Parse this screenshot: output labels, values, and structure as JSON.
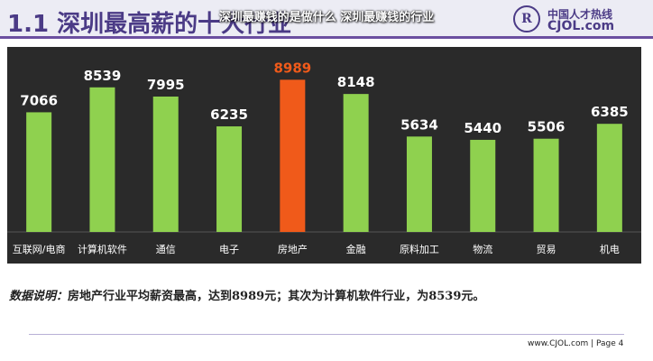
{
  "header": {
    "title": "1.1  深圳最高薪的十大行业",
    "overlay_caption": "深圳最赚钱的是做什么 深圳最赚钱的行业"
  },
  "logo": {
    "name_cn": "中国人才热线",
    "url": "CJOL.com",
    "seal_text": "CJOL"
  },
  "chart_data": {
    "type": "bar",
    "categories": [
      "互联网/电商",
      "计算机软件",
      "通信",
      "电子",
      "房地产",
      "金融",
      "原料加工",
      "物流",
      "贸易",
      "机电"
    ],
    "values": [
      7066,
      8539,
      7995,
      6235,
      8989,
      8148,
      5634,
      5440,
      5506,
      6385
    ],
    "highlight_index": 4,
    "colors": {
      "bar": "#8fd14f",
      "highlight": "#f05a1a",
      "label": "#ffffff",
      "highlight_label": "#f05a1a",
      "background": "#2a2a2a"
    },
    "ylim": [
      0,
      10500
    ],
    "title": "",
    "xlabel": "",
    "ylabel": "",
    "grid": false
  },
  "note": {
    "label": "数据说明：",
    "text": "房地产行业平均薪资最高，达到8989元；其次为计算机软件行业，为8539元。"
  },
  "footer": {
    "text": "www.CJOL.com | Page",
    "page": "4"
  }
}
